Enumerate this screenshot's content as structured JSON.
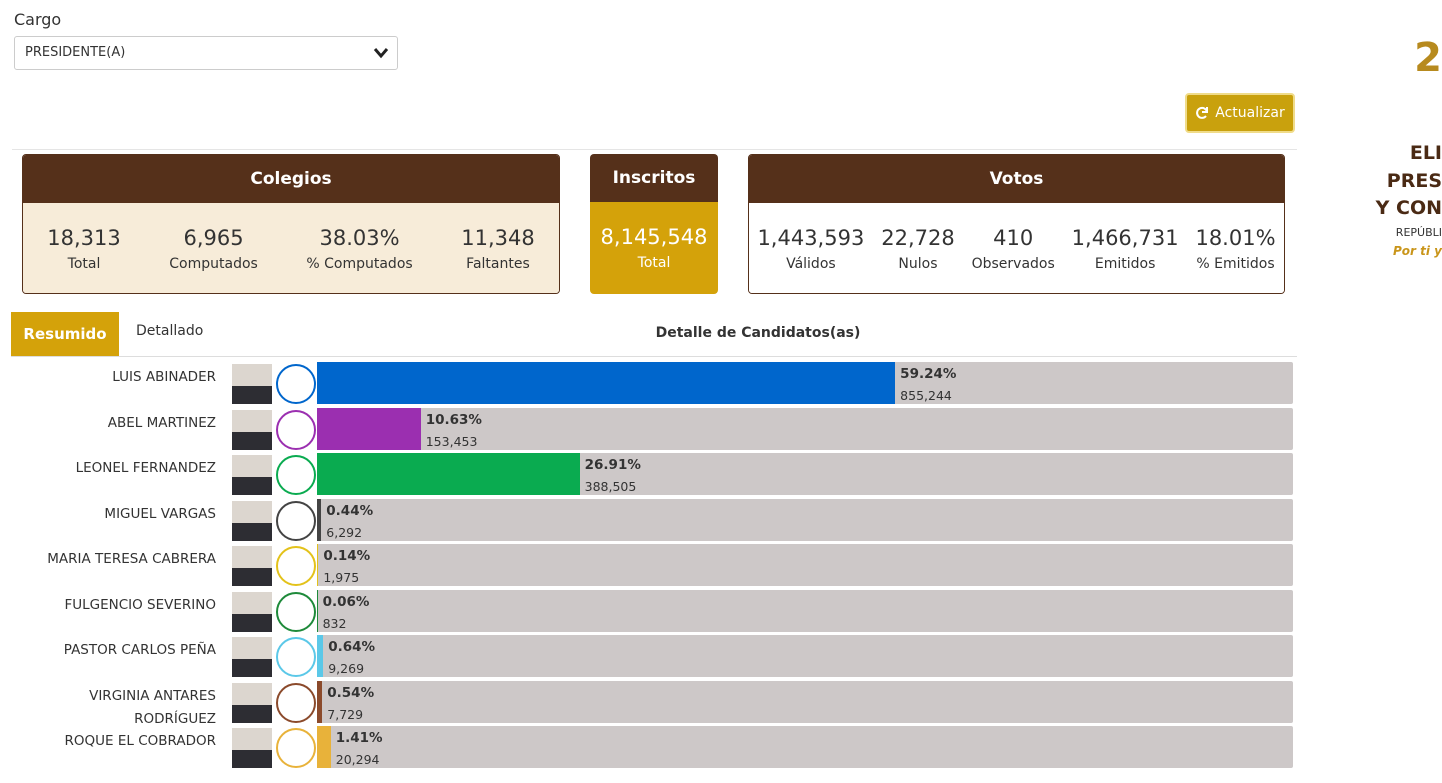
{
  "filter": {
    "label": "Cargo",
    "selected": "PRESIDENTE(A)"
  },
  "refresh_button": "Actualizar",
  "cards": [
    {
      "title": "Colegios",
      "items": [
        {
          "value": "18,313",
          "label": "Total"
        },
        {
          "value": "6,965",
          "label": "Computados"
        },
        {
          "value": "38.03%",
          "label": "% Computados"
        },
        {
          "value": "11,348",
          "label": "Faltantes"
        }
      ]
    },
    {
      "title": "Inscritos",
      "items": [
        {
          "value": "8,145,548",
          "label": "Total"
        }
      ]
    },
    {
      "title": "Votos",
      "items": [
        {
          "value": "1,443,593",
          "label": "Válidos"
        },
        {
          "value": "22,728",
          "label": "Nulos"
        },
        {
          "value": "410",
          "label": "Observados"
        },
        {
          "value": "1,466,731",
          "label": "Emitidos"
        },
        {
          "value": "18.01%",
          "label": "% Emitidos"
        }
      ]
    }
  ],
  "tabs": [
    "Resumido",
    "Detallado"
  ],
  "sidebar": [
    "2",
    "ELI",
    "PRES",
    "Y CON",
    "REPÚBLI",
    "Por ti y"
  ],
  "chart_data": {
    "type": "bar",
    "title": "Detalle de Candidatos(as)",
    "categories": [
      "LUIS ABINADER",
      "ABEL MARTINEZ",
      "LEONEL FERNANDEZ",
      "MIGUEL VARGAS",
      "MARIA TERESA CABRERA",
      "FULGENCIO SEVERINO",
      "PASTOR CARLOS PEÑA",
      "VIRGINIA ANTARES RODRÍGUEZ",
      "ROQUE EL COBRADOR"
    ],
    "values": [
      59.24,
      10.63,
      26.91,
      0.44,
      0.14,
      0.06,
      0.64,
      0.54,
      1.41
    ],
    "value_labels": [
      "59.24%",
      "10.63%",
      "26.91%",
      "0.44%",
      "0.14%",
      "0.06%",
      "0.64%",
      "0.54%",
      "1.41%"
    ],
    "votes": [
      "855,244",
      "153,453",
      "388,505",
      "6,292",
      "1,975",
      "832",
      "9,269",
      "7,729",
      "20,294"
    ],
    "colors": [
      "#0066cc",
      "#9b2fb0",
      "#0aab50",
      "#444444",
      "#e3c21a",
      "#1e8a3a",
      "#5bc8e8",
      "#8b4a2b",
      "#e8b23a"
    ],
    "xlim": [
      0,
      100
    ]
  }
}
